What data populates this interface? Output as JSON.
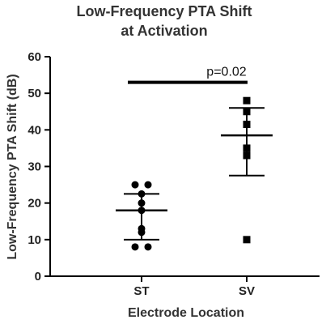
{
  "chart_data": {
    "type": "scatter",
    "title_lines": [
      "Low-Frequency PTA Shift",
      "at Activation"
    ],
    "xlabel": "Electrode Location",
    "ylabel": "Low-Frequency PTA Shift (dB)",
    "categories": [
      "ST",
      "SV"
    ],
    "ylim": [
      0,
      60
    ],
    "yticks": [
      0,
      10,
      20,
      30,
      40,
      50,
      60
    ],
    "grid": false,
    "series": [
      {
        "category": "ST",
        "marker": "circle",
        "points": [
          25,
          25,
          22.5,
          20,
          18,
          13,
          12,
          8,
          8
        ],
        "mean": 18,
        "sd_upper": 22.5,
        "sd_lower": 10
      },
      {
        "category": "SV",
        "marker": "square",
        "points": [
          48,
          45,
          41.5,
          35,
          33,
          10
        ],
        "mean": 38.5,
        "sd_upper": 46,
        "sd_lower": 27.5
      }
    ],
    "annotation": {
      "text": "p=0.02",
      "bracket_y": 53
    },
    "colors": {
      "marks": "#000000",
      "axis": "#000000",
      "text": "#333333"
    }
  }
}
